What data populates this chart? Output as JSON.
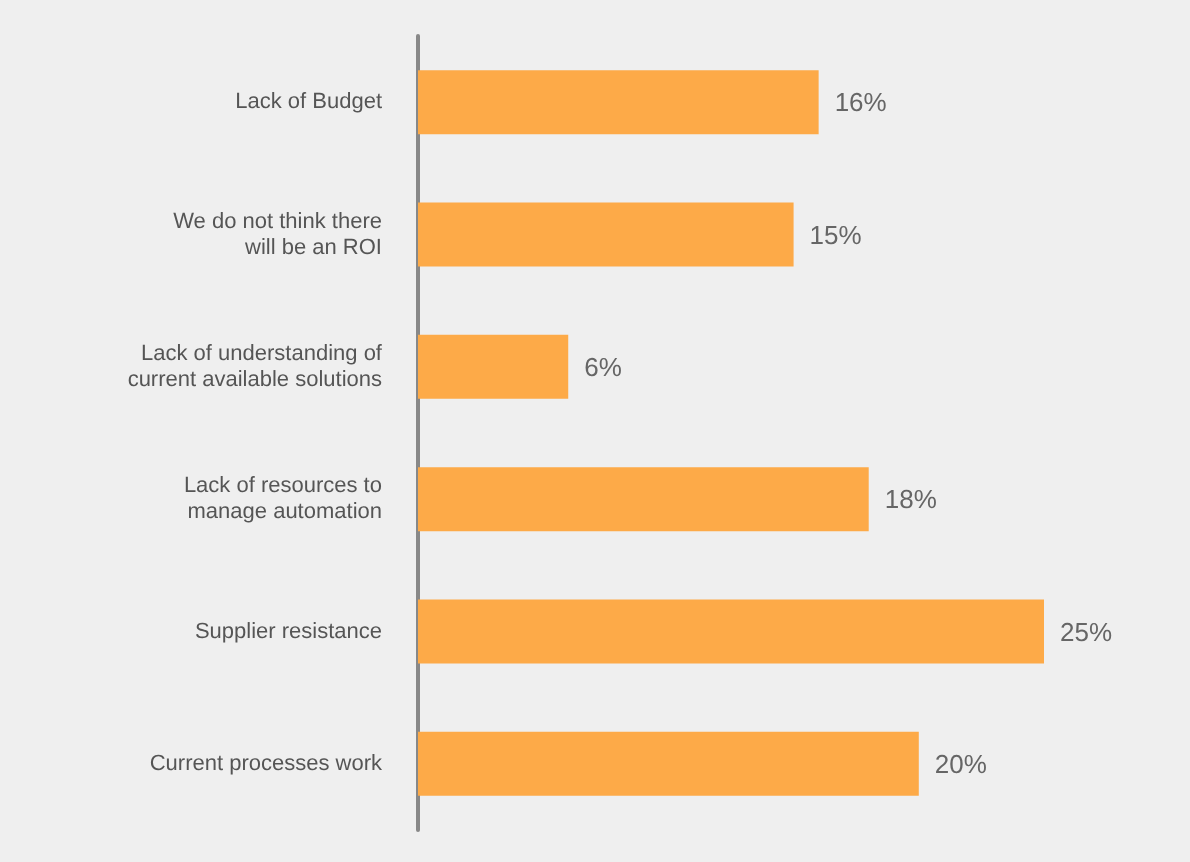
{
  "chart_data": {
    "type": "bar",
    "orientation": "horizontal",
    "categories": [
      "Lack of Budget",
      "We do not think there\nwill be an ROI",
      "Lack of understanding of\ncurrent available solutions",
      "Lack of resources to\nmanage automation",
      "Supplier resistance",
      "Current processes work"
    ],
    "values": [
      16,
      15,
      6,
      18,
      25,
      20
    ],
    "value_labels": [
      "16%",
      "15%",
      "6%",
      "18%",
      "25%",
      "20%"
    ],
    "color": "#fdaa48",
    "tick_labels": "y"
  }
}
